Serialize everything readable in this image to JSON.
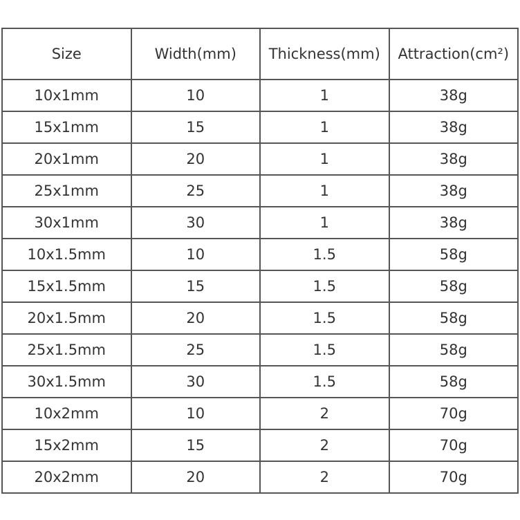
{
  "table": {
    "header": [
      "Size",
      "Width(mm)",
      "Thickness(mm)",
      "Attraction(cm²)"
    ],
    "rows": [
      [
        "10x1mm",
        "10",
        "1",
        "38g"
      ],
      [
        "15x1mm",
        "15",
        "1",
        "38g"
      ],
      [
        "20x1mm",
        "20",
        "1",
        "38g"
      ],
      [
        "25x1mm",
        "25",
        "1",
        "38g"
      ],
      [
        "30x1mm",
        "30",
        "1",
        "38g"
      ],
      [
        "10x1.5mm",
        "10",
        "1.5",
        "58g"
      ],
      [
        "15x1.5mm",
        "15",
        "1.5",
        "58g"
      ],
      [
        "20x1.5mm",
        "20",
        "1.5",
        "58g"
      ],
      [
        "25x1.5mm",
        "25",
        "1.5",
        "58g"
      ],
      [
        "30x1.5mm",
        "30",
        "1.5",
        "58g"
      ],
      [
        "10x2mm",
        "10",
        "2",
        "70g"
      ],
      [
        "15x2mm",
        "15",
        "2",
        "70g"
      ],
      [
        "20x2mm",
        "20",
        "2",
        "70g"
      ]
    ]
  }
}
